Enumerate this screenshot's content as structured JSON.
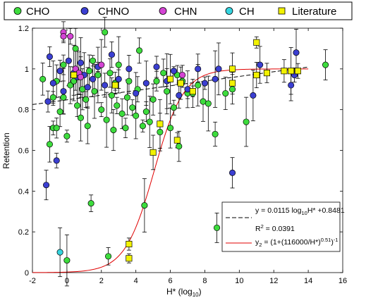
{
  "chart_data": {
    "type": "scatter",
    "xlabel": "H* (log10)",
    "ylabel": "Retention",
    "xlim": [
      -2,
      16
    ],
    "ylim": [
      0,
      1.2
    ],
    "xticks": [
      "-2",
      "0",
      "2",
      "4",
      "6",
      "8",
      "10",
      "12",
      "14",
      "16"
    ],
    "yticks": [
      "0",
      "0.2",
      "0.4",
      "0.6",
      "0.8",
      "1",
      "1.2"
    ],
    "grid": false,
    "legend_position": "top",
    "series": [
      {
        "name": "CHO",
        "color": "#3ddc3d",
        "marker": "circle",
        "points": [
          [
            -1.4,
            0.95
          ],
          [
            -1.0,
            0.63
          ],
          [
            -0.8,
            0.71
          ],
          [
            -0.6,
            0.71
          ],
          [
            -0.4,
            0.79
          ],
          [
            -0.2,
            0.86
          ],
          [
            0.0,
            0.67
          ],
          [
            0.0,
            0.06
          ],
          [
            0.2,
            0.92
          ],
          [
            0.4,
            0.94
          ],
          [
            0.6,
            0.82
          ],
          [
            0.8,
            0.76
          ],
          [
            0.5,
            1.1
          ],
          [
            -0.8,
            0.86
          ],
          [
            -0.6,
            0.94
          ],
          [
            -0.2,
            1.02
          ],
          [
            0.9,
            0.9
          ],
          [
            1.1,
            0.85
          ],
          [
            1.2,
            0.72
          ],
          [
            1.3,
            0.99
          ],
          [
            1.4,
            0.34
          ],
          [
            1.5,
            1.04
          ],
          [
            1.6,
            0.89
          ],
          [
            1.8,
            0.97
          ],
          [
            2.0,
            0.8
          ],
          [
            2.2,
            1.18
          ],
          [
            2.3,
            0.75
          ],
          [
            2.4,
            0.08
          ],
          [
            2.5,
            0.98
          ],
          [
            2.6,
            0.87
          ],
          [
            2.7,
            0.7
          ],
          [
            2.8,
            0.93
          ],
          [
            2.9,
            0.82
          ],
          [
            3.0,
            1.02
          ],
          [
            3.2,
            0.78
          ],
          [
            3.4,
            0.71
          ],
          [
            3.5,
            0.86
          ],
          [
            3.6,
            0.94
          ],
          [
            3.8,
            0.81
          ],
          [
            4.0,
            0.77
          ],
          [
            4.1,
            0.9
          ],
          [
            4.2,
            1.09
          ],
          [
            4.4,
            0.72
          ],
          [
            4.5,
            0.33
          ],
          [
            4.6,
            0.79
          ],
          [
            4.8,
            0.74
          ],
          [
            5.0,
            0.85
          ],
          [
            5.2,
            0.94
          ],
          [
            5.4,
            0.69
          ],
          [
            5.6,
            0.98
          ],
          [
            5.8,
            0.89
          ],
          [
            6.0,
            0.71
          ],
          [
            6.2,
            0.81
          ],
          [
            6.4,
            0.97
          ],
          [
            6.5,
            0.62
          ],
          [
            6.7,
            0.94
          ],
          [
            7.0,
            0.88
          ],
          [
            7.3,
            0.88
          ],
          [
            7.6,
            0.92
          ],
          [
            7.9,
            0.84
          ],
          [
            8.2,
            0.83
          ],
          [
            8.6,
            0.68
          ],
          [
            8.7,
            0.22
          ],
          [
            9.2,
            0.88
          ],
          [
            9.6,
            0.9
          ],
          [
            10.4,
            0.74
          ],
          [
            15.0,
            1.02
          ]
        ]
      },
      {
        "name": "CHNO",
        "color": "#3b3fd1",
        "marker": "circle",
        "points": [
          [
            -1.2,
            0.43
          ],
          [
            -1.1,
            0.84
          ],
          [
            -1.0,
            1.06
          ],
          [
            -0.8,
            0.93
          ],
          [
            -0.6,
            0.55
          ],
          [
            -0.4,
            0.99
          ],
          [
            -0.2,
            0.89
          ],
          [
            0.1,
            1.04
          ],
          [
            0.4,
            0.98
          ],
          [
            0.6,
            0.96
          ],
          [
            0.8,
            1.03
          ],
          [
            1.0,
            0.97
          ],
          [
            1.2,
            0.91
          ],
          [
            1.5,
            0.95
          ],
          [
            1.8,
            1.01
          ],
          [
            2.2,
            0.92
          ],
          [
            2.6,
            1.07
          ],
          [
            3.0,
            0.95
          ],
          [
            3.6,
            1.0
          ],
          [
            4.0,
            0.88
          ],
          [
            4.6,
            0.93
          ],
          [
            5.2,
            1.01
          ],
          [
            5.8,
            0.94
          ],
          [
            6.2,
            0.99
          ],
          [
            6.5,
            0.87
          ],
          [
            7.0,
            0.9
          ],
          [
            7.6,
            1.0
          ],
          [
            8.0,
            0.93
          ],
          [
            8.6,
            0.95
          ],
          [
            9.6,
            0.49
          ],
          [
            10.8,
            0.87
          ],
          [
            11.2,
            1.02
          ],
          [
            13.0,
            0.92
          ],
          [
            13.2,
            0.97
          ],
          [
            13.3,
            1.08
          ],
          [
            8.8,
            1.0
          ]
        ]
      },
      {
        "name": "CHN",
        "color": "#d444d4",
        "marker": "circle",
        "points": [
          [
            -0.2,
            1.18
          ],
          [
            -0.2,
            1.16
          ],
          [
            0.2,
            1.16
          ],
          [
            0.5,
            1.0
          ],
          [
            0.7,
            0.98
          ],
          [
            0.8,
            0.96
          ],
          [
            2.0,
            1.02
          ],
          [
            6.7,
            0.97
          ]
        ]
      },
      {
        "name": "CH",
        "color": "#35d5e0",
        "marker": "circle",
        "points": [
          [
            -0.4,
            0.1
          ]
        ]
      },
      {
        "name": "Literature",
        "color": "#f2f200",
        "marker": "square",
        "points": [
          [
            0.4,
            0.97
          ],
          [
            2.8,
            0.92
          ],
          [
            3.6,
            0.14
          ],
          [
            3.6,
            0.07
          ],
          [
            5.0,
            0.59
          ],
          [
            5.4,
            0.73
          ],
          [
            6.0,
            0.95
          ],
          [
            6.4,
            0.65
          ],
          [
            6.6,
            0.93
          ],
          [
            7.3,
            0.89
          ],
          [
            9.6,
            0.93
          ],
          [
            9.6,
            1.0
          ],
          [
            11.0,
            1.13
          ],
          [
            11.0,
            0.97
          ],
          [
            11.6,
            0.98
          ],
          [
            12.6,
            0.99
          ],
          [
            13.0,
            0.99
          ],
          [
            13.4,
            0.99
          ]
        ]
      }
    ],
    "fit_lines": [
      {
        "equation": "y = 0.0115 log10H* + 0.8481",
        "r2": "0.0391",
        "slope": 0.0115,
        "intercept": 0.8481,
        "style": "dashed",
        "color": "#000000"
      },
      {
        "equation": "y2 = (1+(116000/H*)^0.51)^-1",
        "K": 116000,
        "n": 0.51,
        "style": "solid",
        "color": "#e00000"
      }
    ]
  },
  "legend": {
    "cho": "CHO",
    "chno": "CHNO",
    "chn": "CHN",
    "ch": "CH",
    "lit": "Literature"
  },
  "axes": {
    "x_label": "H* (log",
    "x_label_sub": "10",
    "x_label_end": ")",
    "y_label": "Retention"
  },
  "fit_box": {
    "eq1_a": "y = 0.0115 log",
    "eq1_sub": "10",
    "eq1_b": "H* +0.8481",
    "r2_a": "R",
    "r2_sup": "2",
    "r2_b": " = 0.0391",
    "eq2_a": "y",
    "eq2_sub": "2",
    "eq2_b": " = (1+(116000/H*)",
    "eq2_sup1": "0.51",
    "eq2_c": ")",
    "eq2_sup2": "-1"
  }
}
